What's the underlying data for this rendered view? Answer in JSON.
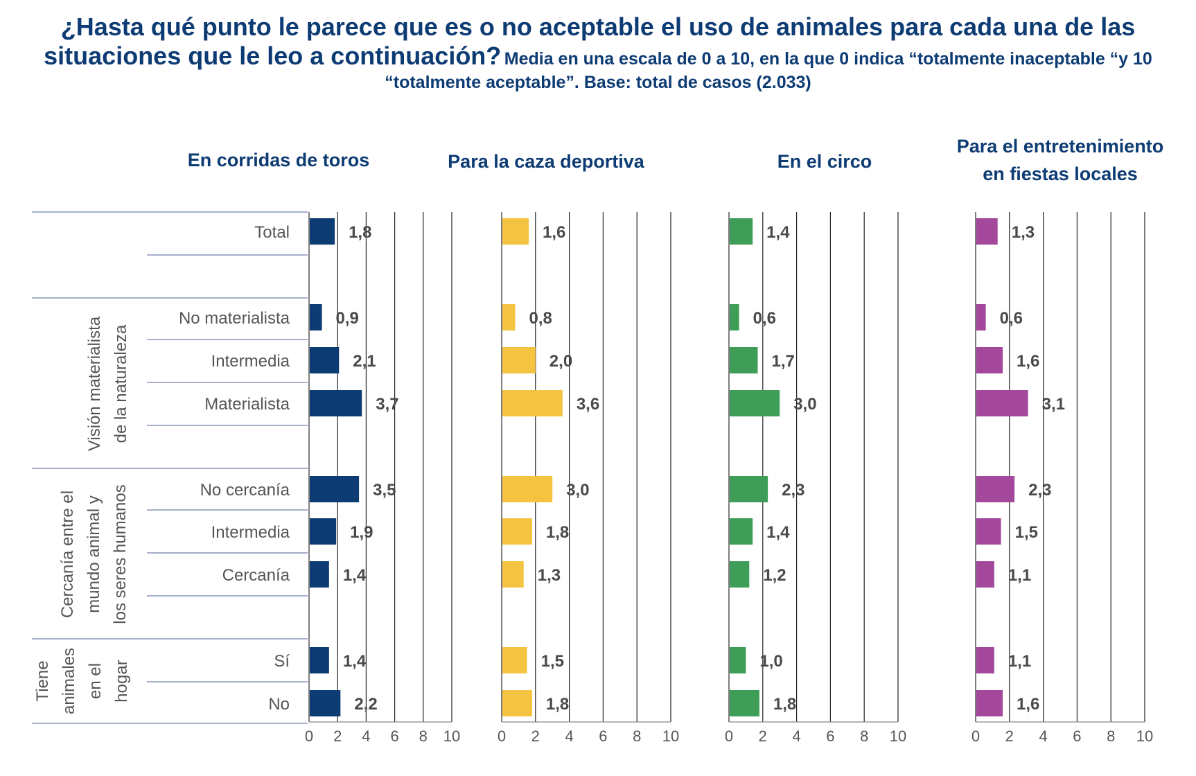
{
  "title": {
    "main": "¿Hasta qué punto le parece que es o no aceptable el uso de animales para cada una de las situaciones que le leo a continuación?",
    "sub": "Media en una escala de 0 a 10,  en la que 0 indica “totalmente inaceptable “y 10 “totalmente aceptable”. Base: total de casos (2.033)"
  },
  "chart_data": {
    "type": "bar",
    "orientation": "horizontal",
    "xlim": [
      0,
      10
    ],
    "xticks": [
      "0",
      "2",
      "4",
      "6",
      "8",
      "10"
    ],
    "grid": true,
    "categories": [
      "Total",
      "No materialista",
      "Intermedia",
      "Materialista",
      "No cercanía",
      "Intermedia",
      "Cercanía",
      "Sí",
      "No"
    ],
    "groups": [
      {
        "label": "",
        "rows": [
          0
        ]
      },
      {
        "label": "Visión materialista de la naturaleza",
        "label_lines": [
          "Visión materialista",
          "de la naturaleza"
        ],
        "rows": [
          1,
          2,
          3
        ]
      },
      {
        "label": "Cercanía entre el mundo animal y los seres humanos",
        "label_lines": [
          "Cercanía entre el",
          "mundo animal y",
          "los seres humanos"
        ],
        "rows": [
          4,
          5,
          6
        ]
      },
      {
        "label": "Tiene animales en el hogar",
        "label_lines": [
          "Tiene",
          "animales",
          "en el",
          "hogar"
        ],
        "rows": [
          7,
          8
        ]
      }
    ],
    "series": [
      {
        "name": "En corridas de toros",
        "title_lines": [
          "En corridas de toros"
        ],
        "color": "#0d3b73",
        "values": [
          1.8,
          0.9,
          2.1,
          3.7,
          3.5,
          1.9,
          1.4,
          1.4,
          2.2
        ],
        "value_labels": [
          "1,8",
          "0,9",
          "2,1",
          "3,7",
          "3,5",
          "1,9",
          "1,4",
          "1,4",
          "2,2"
        ]
      },
      {
        "name": "Para la caza deportiva",
        "title_lines": [
          "Para la caza deportiva"
        ],
        "color": "#f5c342",
        "values": [
          1.6,
          0.8,
          2.0,
          3.6,
          3.0,
          1.8,
          1.3,
          1.5,
          1.8
        ],
        "value_labels": [
          "1,6",
          "0,8",
          "2,0",
          "3,6",
          "3,0",
          "1,8",
          "1,3",
          "1,5",
          "1,8"
        ]
      },
      {
        "name": "En el circo",
        "title_lines": [
          "En el circo"
        ],
        "color": "#3e9e57",
        "values": [
          1.4,
          0.6,
          1.7,
          3.0,
          2.3,
          1.4,
          1.2,
          1.0,
          1.8
        ],
        "value_labels": [
          "1,4",
          "0,6",
          "1,7",
          "3,0",
          "2,3",
          "1,4",
          "1,2",
          "1,0",
          "1,8"
        ]
      },
      {
        "name": "Para el entretenimiento en fiestas locales",
        "title_lines": [
          "Para el entretenimiento",
          "en fiestas locales"
        ],
        "color": "#a3489a",
        "values": [
          1.3,
          0.6,
          1.6,
          3.1,
          2.3,
          1.5,
          1.1,
          1.1,
          1.6
        ],
        "value_labels": [
          "1,3",
          "0,6",
          "1,6",
          "3,1",
          "2,3",
          "1,5",
          "1,1",
          "1,1",
          "1,6"
        ]
      }
    ]
  }
}
